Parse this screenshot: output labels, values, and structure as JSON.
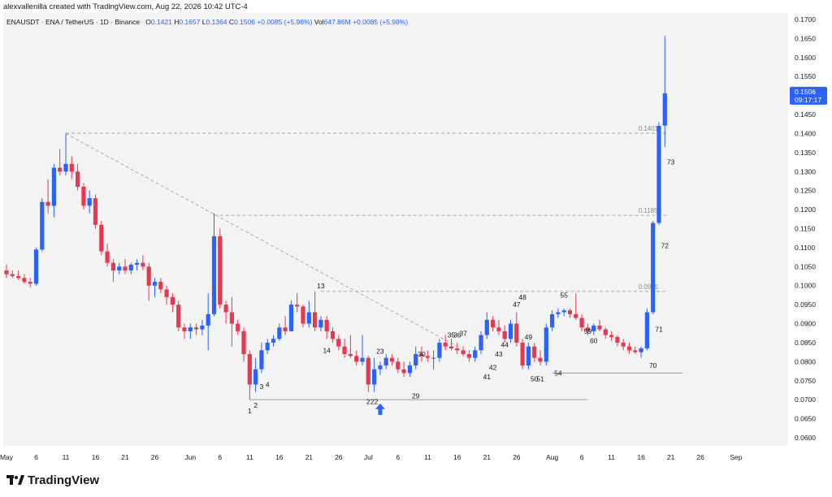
{
  "header": {
    "attribution": "alexvallenilla created with TradingView.com, Aug 22, 2026 10:42 UTC-4"
  },
  "legend": {
    "symbol": "ENAUSDT · ENA / TetherUS · 1D · Binance",
    "o_label": "O",
    "o_val": "0.1421",
    "h_label": "H",
    "h_val": "0.1657",
    "l_label": "L",
    "l_val": "0.1364",
    "c_label": "C",
    "c_val": "0.1506",
    "change": "+0.0085 (+5.98%)",
    "vol_label": "Vol",
    "vol_val": "647.86M",
    "vol_change": "+0.0085 (+5.98%)"
  },
  "price_tag": {
    "value": "0.1506",
    "timer": "09:17:17"
  },
  "footer": {
    "brand": "TradingView"
  },
  "colors": {
    "up": "#2962ff",
    "down": "#e8374f",
    "background": "#f3f3f3"
  },
  "chart_data": {
    "type": "candlestick",
    "y_axis": {
      "range": [
        0.0575,
        0.1725
      ],
      "ticks": [
        "0.1700",
        "0.1650",
        "0.1600",
        "0.1550",
        "0.1500",
        "0.1450",
        "0.1400",
        "0.1350",
        "0.1300",
        "0.1250",
        "0.1200",
        "0.1150",
        "0.1100",
        "0.1050",
        "0.1000",
        "0.0950",
        "0.0900",
        "0.0850",
        "0.0800",
        "0.0750",
        "0.0700",
        "0.0650",
        "0.0600"
      ]
    },
    "x_axis": {
      "ticks": [
        {
          "label": "May",
          "idx": 0
        },
        {
          "label": "6",
          "idx": 5
        },
        {
          "label": "11",
          "idx": 10
        },
        {
          "label": "16",
          "idx": 15
        },
        {
          "label": "21",
          "idx": 20
        },
        {
          "label": "26",
          "idx": 25
        },
        {
          "label": "Jun",
          "idx": 31
        },
        {
          "label": "6",
          "idx": 36
        },
        {
          "label": "11",
          "idx": 41
        },
        {
          "label": "16",
          "idx": 46
        },
        {
          "label": "21",
          "idx": 51
        },
        {
          "label": "26",
          "idx": 56
        },
        {
          "label": "Jul",
          "idx": 61
        },
        {
          "label": "6",
          "idx": 66
        },
        {
          "label": "11",
          "idx": 71
        },
        {
          "label": "16",
          "idx": 76
        },
        {
          "label": "21",
          "idx": 81
        },
        {
          "label": "26",
          "idx": 86
        },
        {
          "label": "Aug",
          "idx": 92
        },
        {
          "label": "6",
          "idx": 97
        },
        {
          "label": "11",
          "idx": 102
        },
        {
          "label": "16",
          "idx": 107
        },
        {
          "label": "21",
          "idx": 112
        },
        {
          "label": "26",
          "idx": 117
        },
        {
          "label": "Sep",
          "idx": 123
        }
      ]
    },
    "candles": [
      [
        0.104,
        0.1055,
        0.102,
        0.103
      ],
      [
        0.103,
        0.104,
        0.102,
        0.1025
      ],
      [
        0.1025,
        0.104,
        0.1015,
        0.102
      ],
      [
        0.102,
        0.103,
        0.1005,
        0.101
      ],
      [
        0.101,
        0.102,
        0.0995,
        0.1005
      ],
      [
        0.1005,
        0.11,
        0.1,
        0.1095
      ],
      [
        0.1095,
        0.123,
        0.109,
        0.122
      ],
      [
        0.122,
        0.128,
        0.119,
        0.121
      ],
      [
        0.121,
        0.132,
        0.118,
        0.131
      ],
      [
        0.131,
        0.136,
        0.129,
        0.13
      ],
      [
        0.13,
        0.14,
        0.129,
        0.132
      ],
      [
        0.132,
        0.134,
        0.128,
        0.13
      ],
      [
        0.13,
        0.132,
        0.125,
        0.126
      ],
      [
        0.126,
        0.127,
        0.12,
        0.121
      ],
      [
        0.121,
        0.125,
        0.119,
        0.123
      ],
      [
        0.123,
        0.124,
        0.115,
        0.116
      ],
      [
        0.116,
        0.117,
        0.108,
        0.109
      ],
      [
        0.109,
        0.111,
        0.105,
        0.106
      ],
      [
        0.106,
        0.107,
        0.101,
        0.104
      ],
      [
        0.104,
        0.106,
        0.103,
        0.105
      ],
      [
        0.105,
        0.107,
        0.103,
        0.104
      ],
      [
        0.104,
        0.106,
        0.103,
        0.1055
      ],
      [
        0.1055,
        0.107,
        0.104,
        0.106
      ],
      [
        0.106,
        0.108,
        0.104,
        0.105
      ],
      [
        0.105,
        0.106,
        0.096,
        0.1
      ],
      [
        0.1,
        0.102,
        0.097,
        0.101
      ],
      [
        0.101,
        0.102,
        0.098,
        0.099
      ],
      [
        0.099,
        0.1,
        0.095,
        0.097
      ],
      [
        0.097,
        0.098,
        0.093,
        0.095
      ],
      [
        0.095,
        0.096,
        0.088,
        0.089
      ],
      [
        0.089,
        0.09,
        0.086,
        0.088
      ],
      [
        0.088,
        0.09,
        0.086,
        0.089
      ],
      [
        0.089,
        0.09,
        0.087,
        0.0885
      ],
      [
        0.0885,
        0.091,
        0.087,
        0.0895
      ],
      [
        0.0895,
        0.098,
        0.083,
        0.0925
      ],
      [
        0.0925,
        0.119,
        0.092,
        0.113
      ],
      [
        0.113,
        0.115,
        0.094,
        0.095
      ],
      [
        0.095,
        0.096,
        0.09,
        0.093
      ],
      [
        0.093,
        0.097,
        0.084,
        0.09
      ],
      [
        0.09,
        0.091,
        0.087,
        0.088
      ],
      [
        0.088,
        0.089,
        0.08,
        0.082
      ],
      [
        0.082,
        0.083,
        0.07,
        0.074
      ],
      [
        0.074,
        0.081,
        0.072,
        0.078
      ],
      [
        0.078,
        0.085,
        0.077,
        0.083
      ],
      [
        0.083,
        0.086,
        0.082,
        0.085
      ],
      [
        0.085,
        0.087,
        0.084,
        0.086
      ],
      [
        0.086,
        0.09,
        0.0855,
        0.089
      ],
      [
        0.089,
        0.092,
        0.087,
        0.088
      ],
      [
        0.088,
        0.096,
        0.088,
        0.095
      ],
      [
        0.095,
        0.098,
        0.093,
        0.0945
      ],
      [
        0.0945,
        0.095,
        0.089,
        0.09
      ],
      [
        0.09,
        0.096,
        0.089,
        0.093
      ],
      [
        0.093,
        0.0985,
        0.088,
        0.089
      ],
      [
        0.089,
        0.092,
        0.088,
        0.091
      ],
      [
        0.091,
        0.092,
        0.086,
        0.088
      ],
      [
        0.088,
        0.089,
        0.085,
        0.086
      ],
      [
        0.086,
        0.087,
        0.083,
        0.084
      ],
      [
        0.084,
        0.086,
        0.081,
        0.082
      ],
      [
        0.082,
        0.087,
        0.081,
        0.0815
      ],
      [
        0.0815,
        0.083,
        0.079,
        0.08
      ],
      [
        0.08,
        0.087,
        0.079,
        0.081
      ],
      [
        0.081,
        0.0815,
        0.072,
        0.074
      ],
      [
        0.074,
        0.081,
        0.072,
        0.078
      ],
      [
        0.078,
        0.08,
        0.0765,
        0.079
      ],
      [
        0.079,
        0.082,
        0.078,
        0.081
      ],
      [
        0.081,
        0.082,
        0.079,
        0.08
      ],
      [
        0.08,
        0.081,
        0.077,
        0.078
      ],
      [
        0.078,
        0.08,
        0.076,
        0.077
      ],
      [
        0.077,
        0.08,
        0.076,
        0.079
      ],
      [
        0.079,
        0.084,
        0.078,
        0.082
      ],
      [
        0.082,
        0.084,
        0.08,
        0.0815
      ],
      [
        0.0815,
        0.083,
        0.08,
        0.081
      ],
      [
        0.081,
        0.083,
        0.078,
        0.081
      ],
      [
        0.081,
        0.086,
        0.08,
        0.085
      ],
      [
        0.085,
        0.087,
        0.083,
        0.084
      ],
      [
        0.084,
        0.086,
        0.083,
        0.0835
      ],
      [
        0.0835,
        0.085,
        0.082,
        0.083
      ],
      [
        0.083,
        0.084,
        0.0815,
        0.082
      ],
      [
        0.082,
        0.083,
        0.08,
        0.081
      ],
      [
        0.081,
        0.084,
        0.08,
        0.083
      ],
      [
        0.083,
        0.088,
        0.082,
        0.087
      ],
      [
        0.087,
        0.093,
        0.086,
        0.091
      ],
      [
        0.091,
        0.092,
        0.088,
        0.089
      ],
      [
        0.089,
        0.091,
        0.087,
        0.088
      ],
      [
        0.088,
        0.0895,
        0.085,
        0.086
      ],
      [
        0.086,
        0.091,
        0.085,
        0.09
      ],
      [
        0.09,
        0.093,
        0.084,
        0.085
      ],
      [
        0.085,
        0.086,
        0.078,
        0.079
      ],
      [
        0.079,
        0.085,
        0.078,
        0.084
      ],
      [
        0.084,
        0.085,
        0.08,
        0.081
      ],
      [
        0.081,
        0.083,
        0.079,
        0.08
      ],
      [
        0.08,
        0.09,
        0.079,
        0.089
      ],
      [
        0.089,
        0.0935,
        0.088,
        0.0925
      ],
      [
        0.0925,
        0.094,
        0.0915,
        0.093
      ],
      [
        0.093,
        0.094,
        0.092,
        0.0935
      ],
      [
        0.0935,
        0.094,
        0.0915,
        0.0925
      ],
      [
        0.0925,
        0.098,
        0.091,
        0.0915
      ],
      [
        0.0915,
        0.0925,
        0.088,
        0.089
      ],
      [
        0.089,
        0.09,
        0.087,
        0.088
      ],
      [
        0.088,
        0.09,
        0.087,
        0.0895
      ],
      [
        0.0895,
        0.091,
        0.088,
        0.0885
      ],
      [
        0.0885,
        0.089,
        0.086,
        0.087
      ],
      [
        0.087,
        0.088,
        0.0855,
        0.0865
      ],
      [
        0.0865,
        0.087,
        0.084,
        0.085
      ],
      [
        0.085,
        0.086,
        0.083,
        0.084
      ],
      [
        0.084,
        0.085,
        0.082,
        0.083
      ],
      [
        0.083,
        0.084,
        0.082,
        0.0825
      ],
      [
        0.0825,
        0.084,
        0.081,
        0.0835
      ],
      [
        0.0835,
        0.094,
        0.083,
        0.093
      ],
      [
        0.093,
        0.117,
        0.0925,
        0.1165
      ],
      [
        0.1165,
        0.143,
        0.116,
        0.142
      ],
      [
        0.1421,
        0.1657,
        0.1364,
        0.1506
      ]
    ],
    "resistance_lines": [
      {
        "price": 0.1401,
        "label": "0.1401",
        "from": 10
      },
      {
        "price": 0.1185,
        "label": "0.1185",
        "from": 35
      },
      {
        "price": 0.0985,
        "label": "0.0985",
        "from": 53
      }
    ],
    "support_lines": [
      {
        "price": 0.07,
        "from": 41,
        "to": 98
      },
      {
        "price": 0.077,
        "from": 92,
        "to": 114
      }
    ],
    "trendline": {
      "from": [
        10,
        0.14
      ],
      "to": [
        76,
        0.084
      ]
    },
    "wave_labels": [
      {
        "text": "1",
        "idx": 41,
        "price": 0.0685,
        "below": true
      },
      {
        "text": "2",
        "idx": 42,
        "price": 0.07,
        "below": true
      },
      {
        "text": "3",
        "idx": 43,
        "price": 0.075,
        "below": true
      },
      {
        "text": "4",
        "idx": 44,
        "price": 0.0755,
        "below": true
      },
      {
        "text": "13",
        "idx": 53,
        "price": 0.0985,
        "below": false
      },
      {
        "text": "14",
        "idx": 54,
        "price": 0.0845,
        "below": true
      },
      {
        "text": "2",
        "idx": 61,
        "price": 0.071,
        "below": true
      },
      {
        "text": "22",
        "idx": 62,
        "price": 0.071,
        "below": true
      },
      {
        "text": "23",
        "idx": 63,
        "price": 0.0812,
        "below": false
      },
      {
        "text": "29",
        "idx": 69,
        "price": 0.0725,
        "below": true
      },
      {
        "text": "30",
        "idx": 70,
        "price": 0.0805,
        "below": false
      },
      {
        "text": "35",
        "idx": 75,
        "price": 0.0855,
        "below": false
      },
      {
        "text": "36",
        "idx": 76,
        "price": 0.0855,
        "below": false
      },
      {
        "text": "37",
        "idx": 77,
        "price": 0.086,
        "below": false
      },
      {
        "text": "41",
        "idx": 81,
        "price": 0.0775,
        "below": true
      },
      {
        "text": "42",
        "idx": 82,
        "price": 0.08,
        "below": true
      },
      {
        "text": "43",
        "idx": 83,
        "price": 0.0835,
        "below": true
      },
      {
        "text": "44",
        "idx": 84,
        "price": 0.086,
        "below": true
      },
      {
        "text": "47",
        "idx": 86,
        "price": 0.0935,
        "below": false
      },
      {
        "text": "48",
        "idx": 87,
        "price": 0.0955,
        "below": false
      },
      {
        "text": "49",
        "idx": 88,
        "price": 0.088,
        "below": true
      },
      {
        "text": "50",
        "idx": 89,
        "price": 0.077,
        "below": true
      },
      {
        "text": "51",
        "idx": 90,
        "price": 0.077,
        "below": true
      },
      {
        "text": "54",
        "idx": 93,
        "price": 0.0785,
        "below": true
      },
      {
        "text": "55",
        "idx": 94,
        "price": 0.096,
        "below": false
      },
      {
        "text": "59",
        "idx": 98,
        "price": 0.0895,
        "below": true
      },
      {
        "text": "60",
        "idx": 99,
        "price": 0.087,
        "below": true
      },
      {
        "text": "70",
        "idx": 109,
        "price": 0.0805,
        "below": true
      },
      {
        "text": "71",
        "idx": 110,
        "price": 0.09,
        "below": true
      },
      {
        "text": "72",
        "idx": 111,
        "price": 0.112,
        "below": true
      },
      {
        "text": "73",
        "idx": 112,
        "price": 0.134,
        "below": true
      }
    ],
    "marker": {
      "type": "up-arrow",
      "idx": 63
    }
  }
}
